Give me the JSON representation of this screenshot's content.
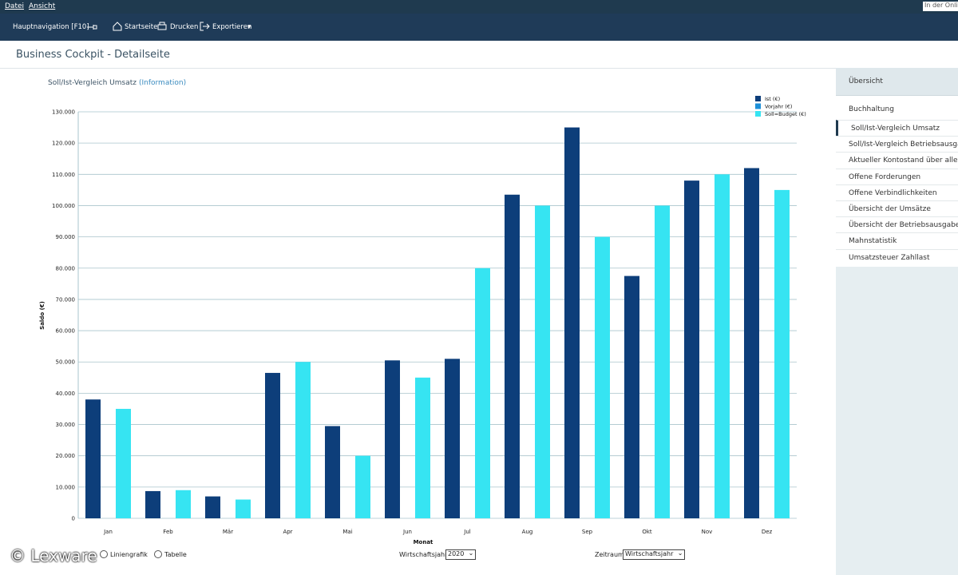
{
  "menu": [
    "Datei",
    "Ansicht"
  ],
  "search": "In der Onlin",
  "toolbar": {
    "nav": "Hauptnavigation [F10]",
    "items": [
      "Startseite",
      "Drucken",
      "Exportieren"
    ]
  },
  "page_title": "Business Cockpit - Detailseite",
  "sidebar": {
    "header": "Übersicht",
    "section": "Buchhaltung",
    "items": [
      "Soll/Ist-Vergleich Umsatz",
      "Soll/Ist-Vergleich Betriebsausgab",
      "Aktueller Kontostand über alle Fi",
      "Offene Forderungen",
      "Offene Verbindlichkeiten",
      "Übersicht der Umsätze",
      "Übersicht der Betriebsausgaben",
      "Mahnstatistik",
      "Umsatzsteuer Zahllast"
    ]
  },
  "controls": {
    "options": [
      "Liniengrafik",
      "Tabelle"
    ],
    "year_label": "Wirtschaftsjahr:",
    "year": "2020",
    "period_label": "Zeitraum:",
    "period": "Wirtschaftsjahr"
  },
  "watermark": "© Lexware",
  "chart_data": {
    "type": "bar",
    "title": "Soll/Ist-Vergleich Umsatz",
    "info_link": "(Information)",
    "x_label": "Monat",
    "y_label": "Saldo (€)",
    "categories": [
      "Jan",
      "Feb",
      "Mär",
      "Apr",
      "Mai",
      "Jun",
      "Jul",
      "Aug",
      "Sep",
      "Okt",
      "Nov",
      "Dez"
    ],
    "series": [
      {
        "name": "Ist (€)",
        "color": "#0d3e7a",
        "values": [
          38000,
          8700,
          7000,
          46500,
          29500,
          50500,
          51000,
          103500,
          125000,
          77500,
          108000,
          112000
        ]
      },
      {
        "name": "Vorjahr (€)",
        "color": "#1c8fd8",
        "values": [
          0,
          0,
          0,
          0,
          0,
          0,
          0,
          0,
          0,
          0,
          0,
          0
        ]
      },
      {
        "name": "Soll=Budget (€)",
        "color": "#36e4f2",
        "values": [
          35000,
          9000,
          6000,
          50000,
          20000,
          45000,
          80000,
          100000,
          90000,
          100000,
          110000,
          105000
        ]
      }
    ],
    "ylim": [
      0,
      130000
    ],
    "yticks": [
      0,
      {
        "value": 10000,
        "label": "10.000"
      },
      {
        "value": 20000,
        "label": "20.000"
      },
      {
        "value": 30000,
        "label": "30.000"
      },
      {
        "value": 40000,
        "label": "40.000"
      },
      {
        "value": 50000,
        "label": "50.000"
      },
      {
        "value": 60000,
        "label": "60.000"
      },
      {
        "value": 70000,
        "label": "70.000"
      },
      {
        "value": 80000,
        "label": "80.000"
      },
      {
        "value": 90000,
        "label": "90.000"
      },
      {
        "value": 100000,
        "label": "100.000"
      },
      {
        "value": 110000,
        "label": "110.000"
      },
      {
        "value": 120000,
        "label": "120.000"
      },
      {
        "value": 130000,
        "label": "130.000"
      }
    ],
    "grid": true,
    "legend": "top-right"
  }
}
